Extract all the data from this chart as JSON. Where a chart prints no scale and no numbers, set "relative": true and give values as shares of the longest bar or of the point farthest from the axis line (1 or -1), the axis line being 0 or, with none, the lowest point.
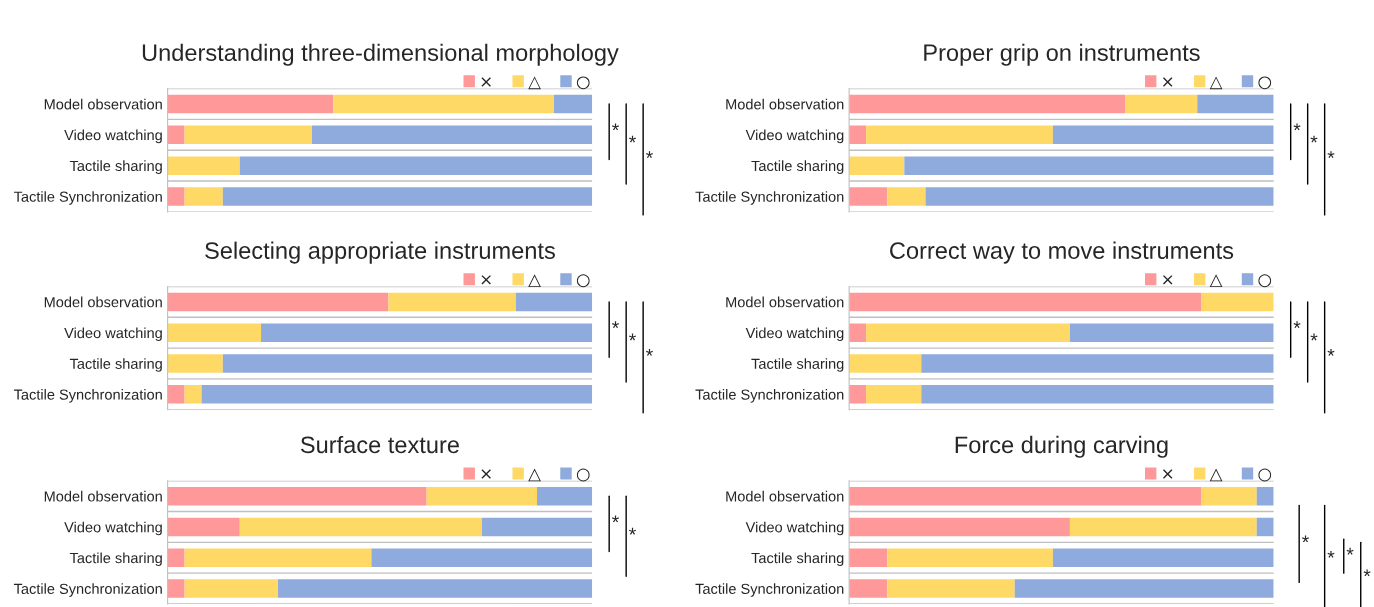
{
  "chart_data": [
    {
      "type": "bar",
      "orientation": "horizontal",
      "stacked": true,
      "relative": true,
      "legend": "top right",
      "title": "Understanding three-dimensional morphology",
      "categories": [
        "Model observation",
        "Video watching",
        "Tactile sharing",
        "Tactile Synchronization"
      ],
      "series": [
        {
          "name": "×",
          "color": "#ff9999",
          "values": [
            0.39,
            0.04,
            0,
            0.04
          ]
        },
        {
          "name": "△",
          "color": "#ffd966",
          "values": [
            0.52,
            0.3,
            0.17,
            0.09
          ]
        },
        {
          "name": "○",
          "color": "#8faadc",
          "values": [
            0.09,
            0.66,
            0.83,
            0.87
          ]
        }
      ],
      "annotations": [
        "*",
        "*",
        "*"
      ]
    },
    {
      "type": "bar",
      "orientation": "horizontal",
      "stacked": true,
      "relative": true,
      "legend": "top right",
      "title": "Proper grip on instruments",
      "categories": [
        "Model observation",
        "Video watching",
        "Tactile sharing",
        "Tactile Synchronization"
      ],
      "series": [
        {
          "name": "×",
          "color": "#ff9999",
          "values": [
            0.65,
            0.04,
            0,
            0.09
          ]
        },
        {
          "name": "△",
          "color": "#ffd966",
          "values": [
            0.17,
            0.44,
            0.13,
            0.09
          ]
        },
        {
          "name": "○",
          "color": "#8faadc",
          "values": [
            0.18,
            0.52,
            0.87,
            0.82
          ]
        }
      ],
      "annotations": [
        "*",
        "*",
        "*"
      ]
    },
    {
      "type": "bar",
      "orientation": "horizontal",
      "stacked": true,
      "relative": true,
      "legend": "top right",
      "title": "Selecting appropriate instruments",
      "categories": [
        "Model observation",
        "Video watching",
        "Tactile sharing",
        "Tactile Synchronization"
      ],
      "series": [
        {
          "name": "×",
          "color": "#ff9999",
          "values": [
            0.52,
            0,
            0,
            0.04
          ]
        },
        {
          "name": "△",
          "color": "#ffd966",
          "values": [
            0.3,
            0.22,
            0.13,
            0.04
          ]
        },
        {
          "name": "○",
          "color": "#8faadc",
          "values": [
            0.18,
            0.78,
            0.87,
            0.92
          ]
        }
      ],
      "annotations": [
        "*",
        "*",
        "*"
      ]
    },
    {
      "type": "bar",
      "orientation": "horizontal",
      "stacked": true,
      "relative": true,
      "legend": "top right",
      "title": "Correct way to move instruments",
      "categories": [
        "Model observation",
        "Video watching",
        "Tactile sharing",
        "Tactile Synchronization"
      ],
      "series": [
        {
          "name": "×",
          "color": "#ff9999",
          "values": [
            0.83,
            0.04,
            0,
            0.04
          ]
        },
        {
          "name": "△",
          "color": "#ffd966",
          "values": [
            0.17,
            0.48,
            0.17,
            0.13
          ]
        },
        {
          "name": "○",
          "color": "#8faadc",
          "values": [
            0,
            0.48,
            0.83,
            0.83
          ]
        }
      ],
      "annotations": [
        "*",
        "*",
        "*"
      ]
    },
    {
      "type": "bar",
      "orientation": "horizontal",
      "stacked": true,
      "relative": true,
      "legend": "top right",
      "title": "Surface texture",
      "categories": [
        "Model observation",
        "Video watching",
        "Tactile sharing",
        "Tactile Synchronization"
      ],
      "series": [
        {
          "name": "×",
          "color": "#ff9999",
          "values": [
            0.61,
            0.17,
            0.04,
            0.04
          ]
        },
        {
          "name": "△",
          "color": "#ffd966",
          "values": [
            0.26,
            0.57,
            0.44,
            0.22
          ]
        },
        {
          "name": "○",
          "color": "#8faadc",
          "values": [
            0.13,
            0.26,
            0.52,
            0.74
          ]
        }
      ],
      "annotations": [
        "*",
        "*"
      ]
    },
    {
      "type": "bar",
      "orientation": "horizontal",
      "stacked": true,
      "relative": true,
      "legend": "top right",
      "title": "Force during carving",
      "categories": [
        "Model observation",
        "Video watching",
        "Tactile sharing",
        "Tactile Synchronization"
      ],
      "series": [
        {
          "name": "×",
          "color": "#ff9999",
          "values": [
            0.83,
            0.52,
            0.09,
            0.09
          ]
        },
        {
          "name": "△",
          "color": "#ffd966",
          "values": [
            0.13,
            0.44,
            0.39,
            0.3
          ]
        },
        {
          "name": "○",
          "color": "#8faadc",
          "values": [
            0.04,
            0.04,
            0.52,
            0.61
          ]
        }
      ],
      "annotations": [
        "*",
        "*",
        "*",
        "*"
      ]
    }
  ]
}
